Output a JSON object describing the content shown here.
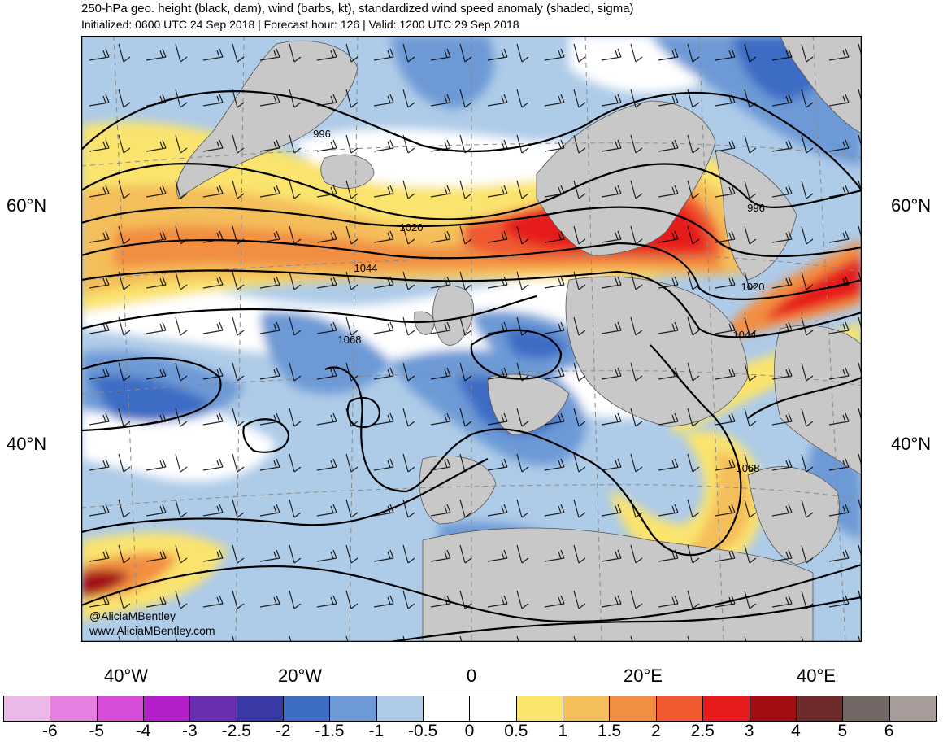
{
  "header": {
    "title": "250-hPa geo. height (black, dam), wind (barbs, kt), standardized wind speed anomaly (shaded, sigma)",
    "subtitle": "Initialized: 0600 UTC 24 Sep 2018 | Forecast hour: 126 | Valid: 1200 UTC 29 Sep 2018"
  },
  "map": {
    "lat_labels": [
      "60°N",
      "40°N"
    ],
    "lon_labels": [
      "40°W",
      "20°W",
      "0",
      "20°E",
      "40°E"
    ],
    "contour_labels": [
      "996",
      "1020",
      "1044",
      "1068",
      "996",
      "1020",
      "1044",
      "1068"
    ],
    "credit_handle": "@AliciaMBentley",
    "credit_site": "www.AliciaMBentley.com"
  },
  "colorbar": {
    "ticks": [
      "-6",
      "-5",
      "-4",
      "-3",
      "-2.5",
      "-2",
      "-1.5",
      "-1",
      "-0.5",
      "0",
      "0.5",
      "1",
      "1.5",
      "2",
      "2.5",
      "3",
      "4",
      "5",
      "6"
    ],
    "colors": [
      "#ecb8e8",
      "#e580e0",
      "#d64ed8",
      "#b21fc8",
      "#6a2fb0",
      "#3a3aa6",
      "#3d6cc4",
      "#6d9ad6",
      "#aecbe8",
      "#ffffff",
      "#ffffff",
      "#fae46e",
      "#f4be5a",
      "#f28e42",
      "#ef5a30",
      "#e61c1c",
      "#a30d12",
      "#6e2b2b",
      "#736866",
      "#a89c9a"
    ]
  }
}
